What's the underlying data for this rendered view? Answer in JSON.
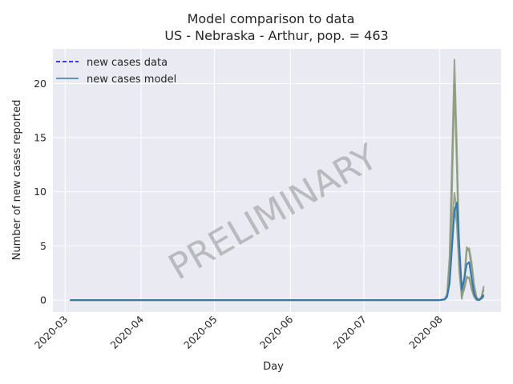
{
  "chart_data": {
    "type": "line",
    "title": "Model comparison to data",
    "subtitle": "US - Nebraska - Arthur, pop. = 463",
    "xlabel": "Day",
    "ylabel": "Number of new cases reported",
    "x_ticks": [
      "2020-03",
      "2020-04",
      "2020-05",
      "2020-06",
      "2020-07",
      "2020-08"
    ],
    "y_ticks": [
      "0",
      "5",
      "10",
      "15",
      "20"
    ],
    "ylim": [
      -1.1,
      23.2
    ],
    "xlim": [
      "2020-02-25",
      "2020-08-26"
    ],
    "grid": true,
    "legend_position": "top-left",
    "legend": [
      {
        "label": "new cases data",
        "style": "dashed",
        "color": "#0000ee"
      },
      {
        "label": "new cases model",
        "style": "solid",
        "color": "#2f78b4"
      }
    ],
    "watermark": "PRELIMINARY",
    "colors": {
      "background": "#eaeaf2",
      "grid": "#ffffff",
      "model": "#2f78b4",
      "ensemble": "#8a9a7a"
    },
    "series": [
      {
        "name": "new cases model",
        "x": [
          "2020-03-03",
          "2020-08-01",
          "2020-08-03",
          "2020-08-04",
          "2020-08-05",
          "2020-08-06",
          "2020-08-07",
          "2020-08-08",
          "2020-08-09",
          "2020-08-10",
          "2020-08-11",
          "2020-08-12",
          "2020-08-13",
          "2020-08-14",
          "2020-08-15",
          "2020-08-16",
          "2020-08-17",
          "2020-08-18",
          "2020-08-19"
        ],
        "values": [
          0,
          0,
          0.05,
          0.3,
          1.5,
          4.8,
          8.2,
          9.0,
          5.0,
          1.0,
          2.0,
          3.3,
          3.5,
          2.0,
          0.6,
          0.1,
          0.0,
          0.2,
          0.5
        ]
      },
      {
        "name": "",
        "x": [
          "2020-03-03",
          "2020-08-01",
          "2020-08-03",
          "2020-08-04",
          "2020-08-05",
          "2020-08-06",
          "2020-08-07",
          "2020-08-08",
          "2020-08-09",
          "2020-08-10",
          "2020-08-11",
          "2020-08-12",
          "2020-08-13",
          "2020-08-14",
          "2020-08-15",
          "2020-08-16",
          "2020-08-17",
          "2020-08-18",
          "2020-08-19"
        ],
        "values": [
          0,
          0,
          0.1,
          0.6,
          4.0,
          13.0,
          22.2,
          14.0,
          4.0,
          0.3,
          2.0,
          4.9,
          4.5,
          3.0,
          1.0,
          0.2,
          0.0,
          0.3,
          1.3
        ]
      },
      {
        "name": "",
        "x": [
          "2020-03-03",
          "2020-08-01",
          "2020-08-03",
          "2020-08-04",
          "2020-08-05",
          "2020-08-06",
          "2020-08-07",
          "2020-08-08",
          "2020-08-09",
          "2020-08-10",
          "2020-08-11",
          "2020-08-12",
          "2020-08-13",
          "2020-08-14",
          "2020-08-15",
          "2020-08-16",
          "2020-08-17",
          "2020-08-18",
          "2020-08-19"
        ],
        "values": [
          0,
          0,
          0.1,
          0.5,
          3.0,
          10.0,
          20.0,
          12.0,
          3.0,
          0.1,
          1.5,
          4.5,
          4.8,
          3.5,
          1.5,
          0.3,
          0.0,
          0.2,
          1.0
        ]
      },
      {
        "name": "",
        "x": [
          "2020-03-03",
          "2020-08-01",
          "2020-08-03",
          "2020-08-04",
          "2020-08-05",
          "2020-08-06",
          "2020-08-07",
          "2020-08-08",
          "2020-08-09",
          "2020-08-10",
          "2020-08-11",
          "2020-08-12",
          "2020-08-13",
          "2020-08-14",
          "2020-08-15",
          "2020-08-16",
          "2020-08-17",
          "2020-08-18",
          "2020-08-19"
        ],
        "values": [
          0,
          0,
          0.05,
          0.4,
          2.5,
          7.0,
          9.9,
          8.0,
          3.0,
          0.5,
          1.2,
          2.2,
          2.0,
          1.2,
          0.4,
          0.1,
          0.0,
          0.1,
          0.4
        ]
      },
      {
        "name": "",
        "x": [
          "2020-03-03",
          "2020-08-01",
          "2020-08-03",
          "2020-08-04",
          "2020-08-05",
          "2020-08-06",
          "2020-08-07",
          "2020-08-08",
          "2020-08-09",
          "2020-08-10",
          "2020-08-11",
          "2020-08-12",
          "2020-08-13",
          "2020-08-14",
          "2020-08-15",
          "2020-08-16",
          "2020-08-17",
          "2020-08-18",
          "2020-08-19"
        ],
        "values": [
          0,
          0,
          0.05,
          0.3,
          1.8,
          5.5,
          8.5,
          7.0,
          2.5,
          0.3,
          1.0,
          2.0,
          2.1,
          1.0,
          0.3,
          0.0,
          0.0,
          0.1,
          0.3
        ]
      }
    ]
  }
}
